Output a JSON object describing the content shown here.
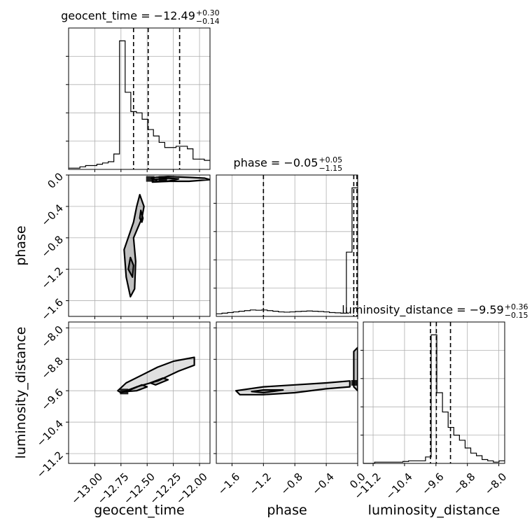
{
  "chart_data": {
    "type": "corner",
    "parameters": [
      "geocent_time",
      "phase",
      "luminosity_distance"
    ],
    "diagonal": [
      {
        "parameter": "geocent_time",
        "title_prefix": "geocent_time = ",
        "median": "−12.49",
        "plus": "+0.30",
        "minus": "−0.14",
        "quantiles": [
          -12.63,
          -12.49,
          -12.19
        ],
        "range": [
          -13.25,
          -11.9
        ],
        "ticks": [
          -13.0,
          -12.75,
          -12.5,
          -12.25,
          -12.0
        ],
        "tick_labels": [
          "−13.00",
          "−12.75",
          "−12.50",
          "−12.25",
          "−12.00"
        ],
        "hist": [
          0.01,
          0.01,
          0.02,
          0.03,
          0.03,
          0.04,
          0.05,
          0.06,
          0.12,
          1.0,
          0.6,
          0.45,
          0.44,
          0.39,
          0.31,
          0.26,
          0.21,
          0.17,
          0.17,
          0.18,
          0.18,
          0.16,
          0.08,
          0.08,
          0.07
        ]
      },
      {
        "parameter": "phase",
        "title_prefix": "phase = ",
        "median": "−0.05",
        "plus": "+0.05",
        "minus": "−1.15",
        "quantiles": [
          -1.2,
          -0.05,
          -0.01
        ],
        "range": [
          -1.8,
          0.0
        ],
        "ticks": [
          -1.6,
          -1.2,
          -0.8,
          -0.4,
          0.0
        ],
        "tick_labels": [
          "−1.6",
          "−1.2",
          "−0.8",
          "−0.4",
          "0.0"
        ],
        "hist": [
          0.02,
          0.025,
          0.03,
          0.035,
          0.04,
          0.045,
          0.05,
          0.048,
          0.05,
          0.045,
          0.04,
          0.035,
          0.033,
          0.035,
          0.038,
          0.04,
          0.042,
          0.04,
          0.038,
          0.035,
          0.03,
          0.028,
          0.025,
          0.5,
          1.0
        ]
      },
      {
        "parameter": "luminosity_distance",
        "title_prefix": "luminosity_distance = ",
        "median": "−9.59",
        "plus": "+0.36",
        "minus": "−0.15",
        "quantiles": [
          -9.74,
          -9.59,
          -9.23
        ],
        "range": [
          -11.45,
          -7.85
        ],
        "ticks": [
          -11.2,
          -10.4,
          -9.6,
          -8.8,
          -8.0
        ],
        "tick_labels": [
          "−11.2",
          "−10.4",
          "−9.6",
          "−8.8",
          "−8.0"
        ],
        "hist": [
          0.0,
          0.0,
          0.01,
          0.01,
          0.01,
          0.01,
          0.01,
          0.015,
          0.02,
          0.02,
          0.02,
          0.05,
          1.0,
          0.55,
          0.4,
          0.28,
          0.22,
          0.18,
          0.12,
          0.08,
          0.06,
          0.03,
          0.02,
          0.01,
          0.02
        ]
      }
    ],
    "contours": [
      {
        "x": "geocent_time",
        "y": "phase",
        "levels": [
          [
            [
              -12.42,
              -0.03
            ],
            [
              -12.3,
              -0.02
            ],
            [
              -12.1,
              -0.03
            ],
            [
              -11.95,
              -0.04
            ],
            [
              -11.9,
              -0.06
            ],
            [
              -12.1,
              -0.08
            ],
            [
              -12.3,
              -0.08
            ],
            [
              -12.4,
              -0.08
            ],
            [
              -12.46,
              -0.04
            ]
          ],
          [
            [
              -12.45,
              -0.06
            ],
            [
              -12.3,
              -0.04
            ],
            [
              -12.2,
              -0.05
            ],
            [
              -12.3,
              -0.08
            ],
            [
              -12.45,
              -0.09
            ]
          ],
          [
            [
              -12.57,
              -0.25
            ],
            [
              -12.53,
              -0.4
            ],
            [
              -12.55,
              -0.55
            ],
            [
              -12.63,
              -0.8
            ],
            [
              -12.61,
              -1.1
            ],
            [
              -12.62,
              -1.45
            ],
            [
              -12.66,
              -1.55
            ],
            [
              -12.7,
              -1.3
            ],
            [
              -12.72,
              -0.95
            ],
            [
              -12.63,
              -0.6
            ],
            [
              -12.6,
              -0.4
            ]
          ],
          [
            [
              -12.56,
              -0.45
            ],
            [
              -12.54,
              -0.55
            ],
            [
              -12.55,
              -0.6
            ],
            [
              -12.57,
              -0.55
            ]
          ],
          [
            [
              -12.66,
              -1.05
            ],
            [
              -12.63,
              -1.15
            ],
            [
              -12.64,
              -1.3
            ],
            [
              -12.68,
              -1.2
            ]
          ]
        ],
        "dark_cells": [
          [
            -12.47,
            -0.05
          ],
          [
            -12.35,
            -0.05
          ]
        ]
      },
      {
        "x": "geocent_time",
        "y": "luminosity_distance",
        "levels": [
          [
            [
              -12.75,
              -9.65
            ],
            [
              -12.6,
              -9.5
            ],
            [
              -12.4,
              -9.35
            ],
            [
              -12.2,
              -9.1
            ],
            [
              -12.05,
              -8.95
            ],
            [
              -12.05,
              -8.75
            ],
            [
              -12.25,
              -8.85
            ],
            [
              -12.4,
              -9.0
            ],
            [
              -12.55,
              -9.2
            ],
            [
              -12.7,
              -9.4
            ],
            [
              -12.78,
              -9.6
            ]
          ],
          [
            [
              -12.7,
              -9.62
            ],
            [
              -12.55,
              -9.45
            ],
            [
              -12.5,
              -9.5
            ],
            [
              -12.6,
              -9.6
            ]
          ],
          [
            [
              -12.47,
              -9.4
            ],
            [
              -12.35,
              -9.28
            ],
            [
              -12.3,
              -9.32
            ],
            [
              -12.42,
              -9.45
            ]
          ]
        ],
        "dark_cells": [
          [
            -12.72,
            -9.62
          ]
        ]
      },
      {
        "x": "phase",
        "y": "luminosity_distance",
        "levels": [
          [
            [
              -1.55,
              -9.6
            ],
            [
              -1.2,
              -9.5
            ],
            [
              -0.8,
              -9.45
            ],
            [
              -0.4,
              -9.4
            ],
            [
              -0.1,
              -9.35
            ],
            [
              -0.1,
              -9.5
            ],
            [
              -0.4,
              -9.55
            ],
            [
              -0.8,
              -9.65
            ],
            [
              -1.2,
              -9.7
            ],
            [
              -1.5,
              -9.7
            ]
          ],
          [
            [
              -1.35,
              -9.62
            ],
            [
              -1.2,
              -9.58
            ],
            [
              -0.95,
              -9.58
            ],
            [
              -1.2,
              -9.65
            ]
          ],
          [
            [
              -0.05,
              -8.6
            ],
            [
              0.0,
              -8.5
            ],
            [
              0.0,
              -9.6
            ],
            [
              -0.05,
              -9.5
            ]
          ]
        ],
        "dark_cells": [
          [
            -0.03,
            -9.4
          ]
        ]
      }
    ]
  }
}
